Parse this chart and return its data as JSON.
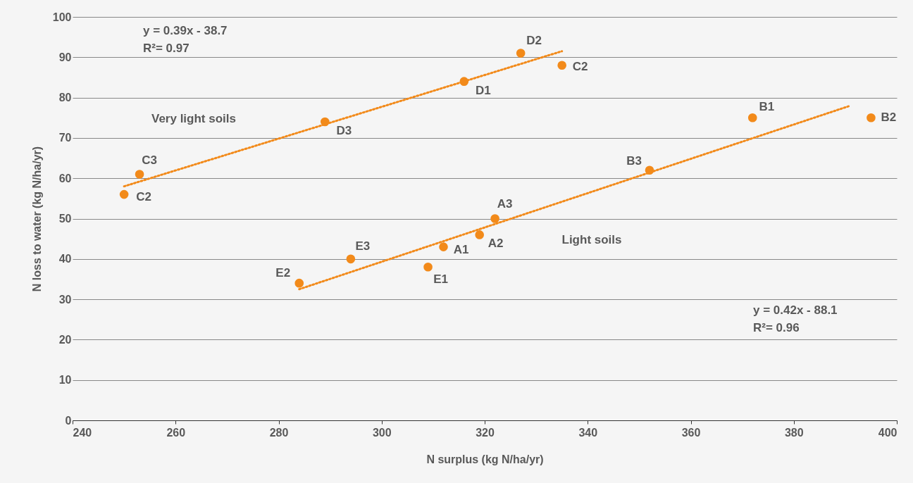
{
  "chart_data": {
    "type": "scatter",
    "xlabel": "N surplus (kg N/ha/yr)",
    "ylabel": "N loss to water (kg N/ha/yr)",
    "xlim": [
      240,
      400
    ],
    "xticks": [
      240,
      260,
      280,
      300,
      320,
      340,
      360,
      380,
      400
    ],
    "ylim": [
      0,
      100
    ],
    "yticks": [
      0,
      10,
      20,
      30,
      40,
      50,
      60,
      70,
      80,
      90,
      100
    ],
    "grid": "y",
    "marker": "circle",
    "series": [
      {
        "color": "#f28a1a",
        "x": [
          250,
          253,
          289,
          316,
          327,
          335
        ],
        "values": [
          56,
          61,
          74,
          84,
          91,
          88
        ],
        "value_labels": [
          "C2",
          "C3",
          "D3",
          "D1",
          "D2",
          "C2"
        ]
      },
      {
        "color": "#f28a1a",
        "x": [
          284,
          294,
          309,
          312,
          319,
          322,
          352,
          372,
          395
        ],
        "values": [
          34,
          40,
          38,
          43,
          46,
          50,
          62,
          75,
          75
        ],
        "value_labels": [
          "E2",
          "E3",
          "E1",
          "A1",
          "A2",
          "A3",
          "B3",
          "B1",
          "B2"
        ]
      },
      {
        "type": "line",
        "marker": "none",
        "line_style": "dotted",
        "color": "#f28a1a",
        "x": [
          250,
          335
        ],
        "values": [
          58,
          91.5
        ]
      },
      {
        "type": "line",
        "marker": "none",
        "line_style": "dotted",
        "color": "#f28a1a",
        "x": [
          284,
          391
        ],
        "values": [
          32.5,
          78
        ]
      }
    ],
    "annotations": [
      "Very light soils",
      "Light soils",
      "y = 0.39x - 38.7",
      "R²= 0.97",
      "y = 0.42x - 88.1",
      "R²= 0.96"
    ]
  }
}
